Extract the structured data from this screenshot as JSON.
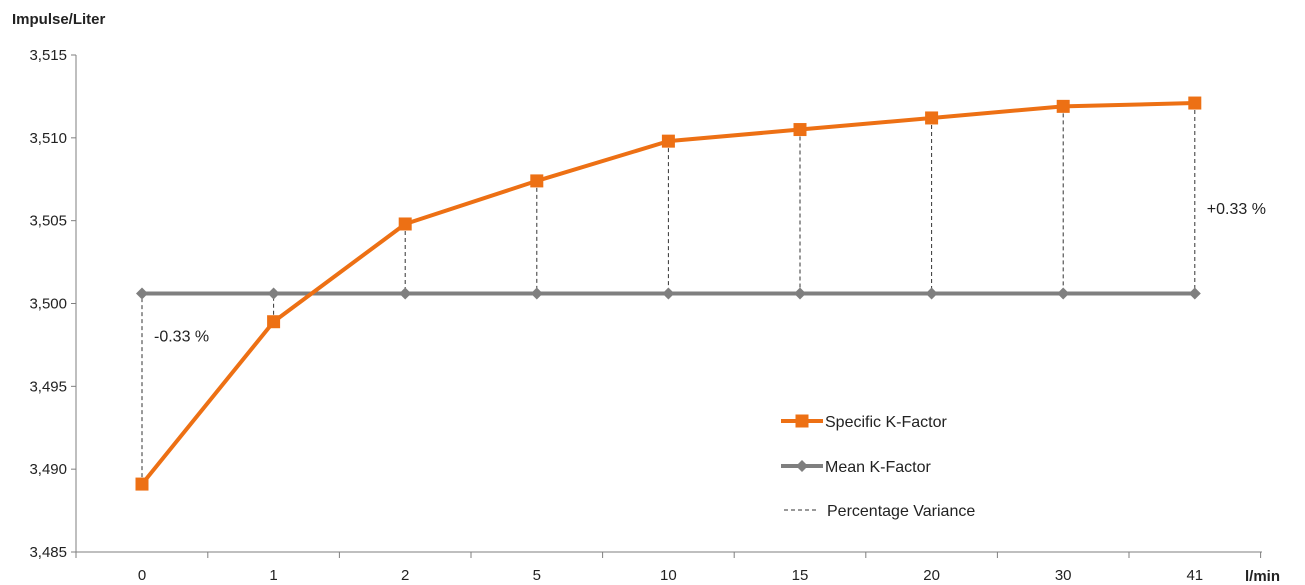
{
  "chart_data": {
    "type": "line",
    "ylabel": "Impulse/Liter",
    "xlabel": "l/min",
    "categories": [
      "0",
      "1",
      "2",
      "5",
      "10",
      "15",
      "20",
      "30",
      "41"
    ],
    "ylim": [
      3.485,
      3.515
    ],
    "yticks": [
      3.485,
      3.49,
      3.495,
      3.5,
      3.505,
      3.51,
      3.515
    ],
    "ytick_labels": [
      "3,485",
      "3,490",
      "3,495",
      "3,500",
      "3,505",
      "3,510",
      "3,515"
    ],
    "grid": false,
    "legend_position": "bottom-right",
    "series": [
      {
        "name": "Specific K-Factor",
        "color": "#ED7014",
        "marker": "square",
        "values": [
          3.4891,
          3.4989,
          3.5048,
          3.5074,
          3.5098,
          3.5105,
          3.5112,
          3.5119,
          3.5121
        ]
      },
      {
        "name": "Mean K-Factor",
        "color": "#7F7F7F",
        "marker": "diamond",
        "values": [
          3.5006,
          3.5006,
          3.5006,
          3.5006,
          3.5006,
          3.5006,
          3.5006,
          3.5006,
          3.5006
        ]
      }
    ],
    "variance_legend": "Percentage Variance",
    "annotations": [
      {
        "text": "-0.33 %",
        "category": "0",
        "y": 3.498
      },
      {
        "text": "+0.33 %",
        "category": "41",
        "y": 3.5057
      }
    ]
  }
}
